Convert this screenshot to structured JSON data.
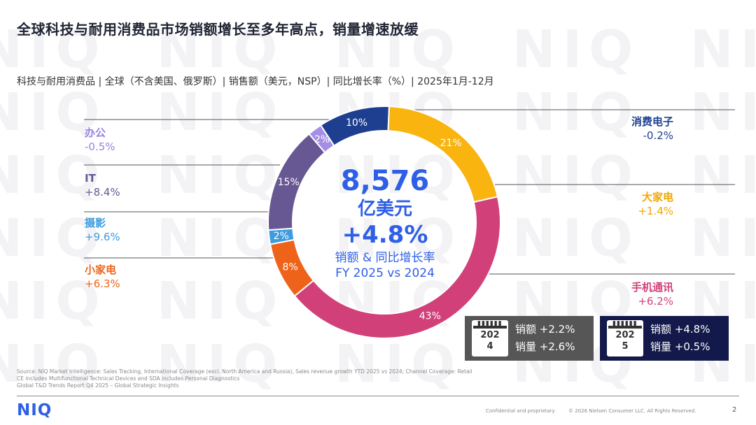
{
  "title": "全球科技与耐用消费品市场销额增长至多年高点，销量增速放缓",
  "subtitle": "科技与耐用消费品 | 全球（不含美国、俄罗斯）| 销售额（美元，NSP）| 同比增长率（%）| 2025年1月-12月",
  "watermark": "NIQ",
  "center": {
    "total": "8,576",
    "unit": "亿美元",
    "growth": "+4.8%",
    "desc1": "销额 & 同比增长率",
    "desc2": "FY 2025 vs 2024"
  },
  "chart_data": {
    "type": "pie",
    "donut": true,
    "start_category": "消费电子",
    "direction": "clockwise",
    "categories": [
      "消费电子",
      "大家电",
      "手机通讯",
      "小家电",
      "摄影",
      "IT",
      "办公"
    ],
    "values": [
      10,
      21,
      43,
      8,
      2,
      15,
      2
    ],
    "value_labels": [
      "10%",
      "21%",
      "43%",
      "8%",
      "2%",
      "15%",
      "2%"
    ],
    "growth": [
      "-0.2%",
      "+1.4%",
      "+6.2%",
      "+6.3%",
      "+9.6%",
      "+8.4%",
      "-0.5%"
    ],
    "colors": [
      "#1e3f8f",
      "#f9b40f",
      "#d2407a",
      "#ee6319",
      "#3d9be0",
      "#675792",
      "#a58ee6"
    ]
  },
  "panels": [
    {
      "year": "202\n4",
      "year_top": "202",
      "year_bottom": "4",
      "sales": "销额 +2.2%",
      "volume": "销量 +2.6%"
    },
    {
      "year_top": "202",
      "year_bottom": "5",
      "sales": "销额 +4.8%",
      "volume": "销量 +0.5%"
    }
  ],
  "source": [
    "Source: NIQ Market Intelligence: Sales Tracking, International Coverage (excl. North America and Russia), Sales revenue growth YTD 2025 vs 2024; Channel Coverage: Retail",
    "CE includes Multifunctional Technical Devices and SDA includes Personal Diagnostics",
    "Global T&D Trends Report Q4 2025 – Global Strategic Insights"
  ],
  "footer": {
    "logo": "NIQ",
    "confidential": "Confidential and proprietary",
    "copyright": "© 2026 Nielsen Consumer LLC. All Rights Reserved.",
    "page": "2"
  }
}
